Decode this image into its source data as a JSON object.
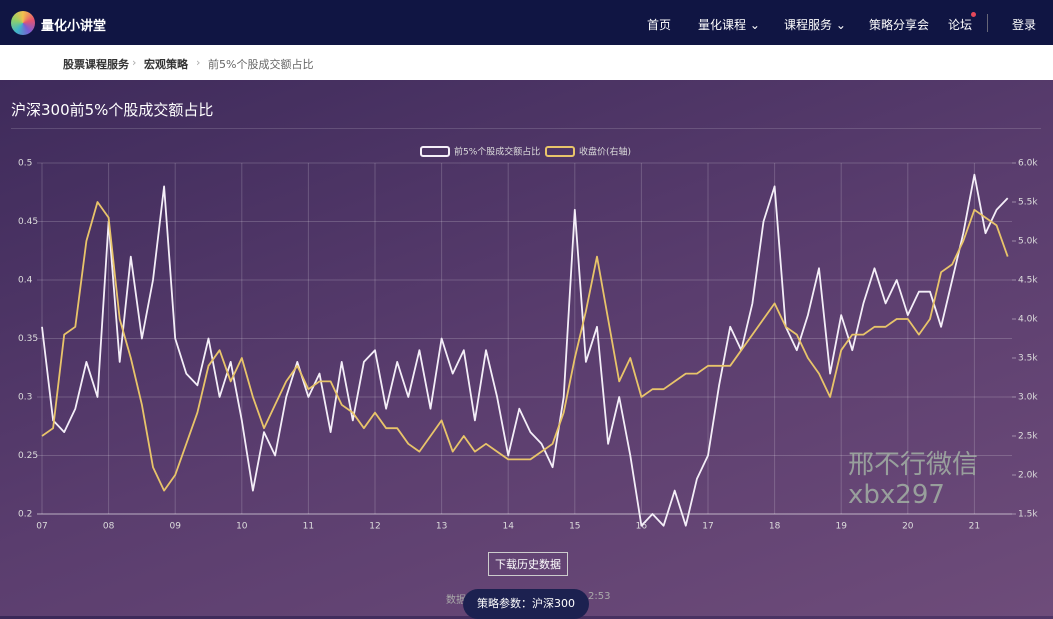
{
  "nav": {
    "brand": "量化小讲堂",
    "items": [
      "首页",
      "量化课程",
      "课程服务",
      "策略分享会",
      "论坛"
    ],
    "login": "登录"
  },
  "breadcrumb": [
    "股票课程服务",
    "宏观策略",
    "前5%个股成交额占比"
  ],
  "page_title": "沪深300前5%个股成交额占比",
  "chart_data": {
    "type": "line",
    "categories": [
      "07",
      null,
      null,
      null,
      null,
      null,
      "08",
      null,
      null,
      null,
      null,
      null,
      "09",
      null,
      null,
      null,
      null,
      null,
      "10",
      null,
      null,
      null,
      null,
      null,
      "11",
      null,
      null,
      null,
      null,
      null,
      "12",
      null,
      null,
      null,
      null,
      null,
      "13",
      null,
      null,
      null,
      null,
      null,
      "14",
      null,
      null,
      null,
      null,
      null,
      "15",
      null,
      null,
      null,
      null,
      null,
      "16",
      null,
      null,
      null,
      null,
      null,
      "17",
      null,
      null,
      null,
      null,
      null,
      "18",
      null,
      null,
      null,
      null,
      null,
      "19",
      null,
      null,
      null,
      null,
      null,
      "20",
      null,
      null,
      null,
      null,
      null,
      "21",
      null,
      null,
      null
    ],
    "series": [
      {
        "name": "前5%个股成交额占比",
        "color": "#f4eef8",
        "values": [
          0.36,
          0.28,
          0.27,
          0.29,
          0.33,
          0.3,
          0.45,
          0.33,
          0.42,
          0.35,
          0.4,
          0.48,
          0.35,
          0.32,
          0.31,
          0.35,
          0.3,
          0.33,
          0.28,
          0.22,
          0.27,
          0.25,
          0.3,
          0.33,
          0.3,
          0.32,
          0.27,
          0.33,
          0.28,
          0.33,
          0.34,
          0.29,
          0.33,
          0.3,
          0.34,
          0.29,
          0.35,
          0.32,
          0.34,
          0.28,
          0.34,
          0.3,
          0.25,
          0.29,
          0.27,
          0.26,
          0.24,
          0.3,
          0.46,
          0.33,
          0.36,
          0.26,
          0.3,
          0.25,
          0.19,
          0.2,
          0.19,
          0.22,
          0.19,
          0.23,
          0.25,
          0.31,
          0.36,
          0.34,
          0.38,
          0.45,
          0.48,
          0.36,
          0.34,
          0.37,
          0.41,
          0.32,
          0.37,
          0.34,
          0.38,
          0.41,
          0.38,
          0.4,
          0.37,
          0.39,
          0.39,
          0.36,
          0.4,
          0.44,
          0.49,
          0.44,
          0.46,
          0.47
        ]
      },
      {
        "name": "收盘价(右轴)",
        "color": "#e8c46a",
        "axis": "y2",
        "values": [
          2500,
          2600,
          3800,
          3900,
          5000,
          5500,
          5300,
          4000,
          3500,
          2900,
          2100,
          1800,
          2000,
          2400,
          2800,
          3400,
          3600,
          3200,
          3500,
          3000,
          2600,
          2900,
          3200,
          3400,
          3100,
          3200,
          3200,
          2900,
          2800,
          2600,
          2800,
          2600,
          2600,
          2400,
          2300,
          2500,
          2700,
          2300,
          2500,
          2300,
          2400,
          2300,
          2200,
          2200,
          2200,
          2300,
          2400,
          2800,
          3500,
          4100,
          4800,
          4000,
          3200,
          3500,
          3000,
          3100,
          3100,
          3200,
          3300,
          3300,
          3400,
          3400,
          3400,
          3600,
          3800,
          4000,
          4200,
          3900,
          3800,
          3500,
          3300,
          3000,
          3600,
          3800,
          3800,
          3900,
          3900,
          4000,
          4000,
          3800,
          4000,
          4600,
          4700,
          5000,
          5400,
          5300,
          5200,
          4800
        ]
      }
    ],
    "ylim": [
      0.2,
      0.5
    ],
    "yticks": [
      0.2,
      0.25,
      0.3,
      0.35,
      0.4,
      0.45,
      0.5
    ],
    "y2lim": [
      1500,
      6000
    ],
    "y2ticks": [
      {
        "value": 1500,
        "label": "1.5k"
      },
      {
        "value": 2000,
        "label": "2.0k"
      },
      {
        "value": 2500,
        "label": "2.5k"
      },
      {
        "value": 3000,
        "label": "3.0k"
      },
      {
        "value": 3500,
        "label": "3.5k"
      },
      {
        "value": 4000,
        "label": "4.0k"
      },
      {
        "value": 4500,
        "label": "4.5k"
      },
      {
        "value": 5000,
        "label": "5.0k"
      },
      {
        "value": 5500,
        "label": "5.5k"
      },
      {
        "value": 6000,
        "label": "6.0k"
      }
    ],
    "grid": true,
    "legend": "top"
  },
  "download_button": "下载历史数据",
  "footer_fragments": [
    "数据",
    "2:53"
  ],
  "params_pill": "策略参数：沪深300",
  "watermark": [
    "邢不行微信",
    "xbx297"
  ]
}
